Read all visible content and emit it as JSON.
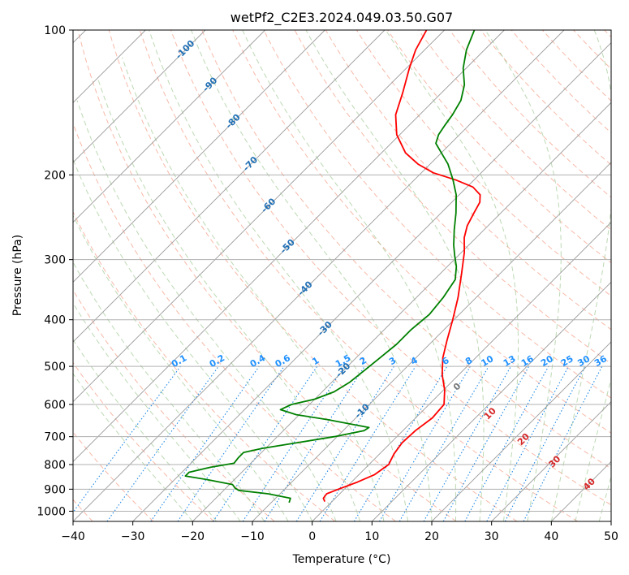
{
  "chart_data": {
    "type": "line",
    "subtype": "skew-t log-p diagram",
    "title": "wetPf2_C2E3.2024.049.03.50.G07",
    "xlabel": "Temperature (°C)",
    "ylabel": "Pressure (hPa)",
    "xlim": [
      -40,
      50
    ],
    "ylim": [
      1050,
      100
    ],
    "y_scale": "log",
    "x_ticks": [
      -40,
      -30,
      -20,
      -10,
      0,
      10,
      20,
      30,
      40,
      50
    ],
    "y_ticks": [
      100,
      200,
      300,
      400,
      500,
      600,
      700,
      800,
      900,
      1000
    ],
    "grid": true,
    "colors": {
      "temperature": "#ff0000",
      "dewpoint": "#008000",
      "dry_adiabat": "#f08060",
      "moist_adiabat": "#8fbf80",
      "mixing_ratio": "#1e88e5",
      "isotherm": "#9a9a9a",
      "label_isotherm": "#1f6fb4",
      "label_mixing_ratio": "#1e90ff",
      "label_moist_adiabat": "#d62728"
    },
    "series": [
      {
        "role": "temperature",
        "points": [
          {
            "p": 955,
            "t": -1.2
          },
          {
            "p": 940,
            "t": -2.0
          },
          {
            "p": 920,
            "t": -2.2
          },
          {
            "p": 900,
            "t": -1.0
          },
          {
            "p": 870,
            "t": 1.0
          },
          {
            "p": 840,
            "t": 2.6
          },
          {
            "p": 800,
            "t": 3.3
          },
          {
            "p": 760,
            "t": 2.4
          },
          {
            "p": 720,
            "t": 1.9
          },
          {
            "p": 680,
            "t": 2.1
          },
          {
            "p": 640,
            "t": 2.8
          },
          {
            "p": 600,
            "t": 2.5
          },
          {
            "p": 560,
            "t": 0.2
          },
          {
            "p": 520,
            "t": -2.8
          },
          {
            "p": 480,
            "t": -5.5
          },
          {
            "p": 440,
            "t": -7.8
          },
          {
            "p": 400,
            "t": -10.2
          },
          {
            "p": 360,
            "t": -13.0
          },
          {
            "p": 320,
            "t": -16.5
          },
          {
            "p": 290,
            "t": -19.5
          },
          {
            "p": 270,
            "t": -22.0
          },
          {
            "p": 255,
            "t": -23.5
          },
          {
            "p": 240,
            "t": -24.5
          },
          {
            "p": 228,
            "t": -25.3
          },
          {
            "p": 220,
            "t": -26.5
          },
          {
            "p": 212,
            "t": -29.0
          },
          {
            "p": 205,
            "t": -33.0
          },
          {
            "p": 198,
            "t": -38.0
          },
          {
            "p": 190,
            "t": -42.0
          },
          {
            "p": 180,
            "t": -46.0
          },
          {
            "p": 165,
            "t": -50.5
          },
          {
            "p": 150,
            "t": -54.0
          },
          {
            "p": 135,
            "t": -56.5
          },
          {
            "p": 120,
            "t": -59.5
          },
          {
            "p": 110,
            "t": -61.5
          },
          {
            "p": 100,
            "t": -63.0
          }
        ]
      },
      {
        "role": "dewpoint",
        "points": [
          {
            "p": 960,
            "t": -7.0
          },
          {
            "p": 940,
            "t": -7.5
          },
          {
            "p": 920,
            "t": -12.0
          },
          {
            "p": 905,
            "t": -17.5
          },
          {
            "p": 895,
            "t": -18.5
          },
          {
            "p": 880,
            "t": -19.5
          },
          {
            "p": 860,
            "t": -24.5
          },
          {
            "p": 845,
            "t": -28.8
          },
          {
            "p": 830,
            "t": -28.8
          },
          {
            "p": 810,
            "t": -26.0
          },
          {
            "p": 795,
            "t": -22.8
          },
          {
            "p": 775,
            "t": -23.0
          },
          {
            "p": 755,
            "t": -23.0
          },
          {
            "p": 740,
            "t": -20.5
          },
          {
            "p": 720,
            "t": -15.5
          },
          {
            "p": 700,
            "t": -10.5
          },
          {
            "p": 680,
            "t": -6.5
          },
          {
            "p": 670,
            "t": -6.2
          },
          {
            "p": 660,
            "t": -9.5
          },
          {
            "p": 645,
            "t": -14.5
          },
          {
            "p": 630,
            "t": -20.5
          },
          {
            "p": 615,
            "t": -24.0
          },
          {
            "p": 600,
            "t": -23.0
          },
          {
            "p": 585,
            "t": -20.0
          },
          {
            "p": 565,
            "t": -18.0
          },
          {
            "p": 540,
            "t": -17.0
          },
          {
            "p": 510,
            "t": -16.5
          },
          {
            "p": 480,
            "t": -16.0
          },
          {
            "p": 450,
            "t": -15.5
          },
          {
            "p": 420,
            "t": -15.5
          },
          {
            "p": 390,
            "t": -15.0
          },
          {
            "p": 360,
            "t": -15.5
          },
          {
            "p": 330,
            "t": -16.5
          },
          {
            "p": 310,
            "t": -18.5
          },
          {
            "p": 295,
            "t": -20.5
          },
          {
            "p": 280,
            "t": -22.5
          },
          {
            "p": 260,
            "t": -25.0
          },
          {
            "p": 240,
            "t": -27.5
          },
          {
            "p": 220,
            "t": -30.5
          },
          {
            "p": 205,
            "t": -33.5
          },
          {
            "p": 190,
            "t": -37.0
          },
          {
            "p": 180,
            "t": -40.0
          },
          {
            "p": 172,
            "t": -42.5
          },
          {
            "p": 165,
            "t": -43.5
          },
          {
            "p": 158,
            "t": -44.0
          },
          {
            "p": 150,
            "t": -44.5
          },
          {
            "p": 140,
            "t": -45.5
          },
          {
            "p": 130,
            "t": -47.5
          },
          {
            "p": 120,
            "t": -50.5
          },
          {
            "p": 110,
            "t": -53.0
          },
          {
            "p": 100,
            "t": -55.0
          }
        ]
      }
    ],
    "isotherm_labels": [
      {
        "t": -100,
        "label": "-100"
      },
      {
        "t": -90,
        "label": "-90"
      },
      {
        "t": -80,
        "label": "-80"
      },
      {
        "t": -70,
        "label": "-70"
      },
      {
        "t": -60,
        "label": "-60"
      },
      {
        "t": -50,
        "label": "-50"
      },
      {
        "t": -40,
        "label": "-40"
      },
      {
        "t": -30,
        "label": "-30"
      },
      {
        "t": -20,
        "label": "-20"
      },
      {
        "t": -10,
        "label": "-10"
      }
    ],
    "mixing_ratio_labels": [
      "0.1",
      "0.2",
      "0.4",
      "0.6",
      "1",
      "1.5",
      "2",
      "3",
      "4",
      "6",
      "8",
      "10",
      "13",
      "16",
      "20",
      "25",
      "30",
      "36"
    ],
    "mixing_ratio_values": [
      0.1,
      0.2,
      0.4,
      0.6,
      1,
      1.5,
      2,
      3,
      4,
      6,
      8,
      10,
      13,
      16,
      20,
      25,
      30,
      36
    ],
    "moist_adiabat_labels": [
      {
        "t": 0,
        "label": "0"
      },
      {
        "t": 10,
        "label": "10"
      },
      {
        "t": 20,
        "label": "20"
      },
      {
        "t": 30,
        "label": "30"
      },
      {
        "t": 40,
        "label": "40"
      }
    ]
  }
}
